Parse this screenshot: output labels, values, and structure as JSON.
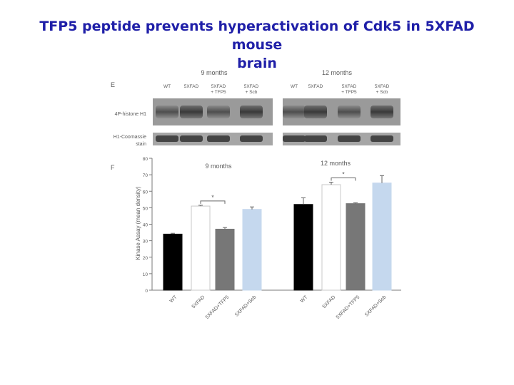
{
  "slide": {
    "title_line1": "TFP5 peptide prevents hyperactivation of Cdk5 in 5XFAD mouse",
    "title_line2": "brain"
  },
  "panel_e": {
    "letter": "E",
    "groups": [
      {
        "header": "9 months",
        "lanes": [
          "WT",
          "5XFAD",
          "5XFAD\n+ TFP5",
          "5XFAD\n+ Scb"
        ]
      },
      {
        "header": "12 months",
        "lanes": [
          "WT",
          "5XFAD",
          "5XFAD\n+ TFP5",
          "5XFAD\n+ Scb"
        ]
      }
    ],
    "row_labels": [
      "4P-histone H1",
      "H1-Coomassie\nstain"
    ]
  },
  "panel_f": {
    "letter": "F",
    "chart_data": {
      "type": "bar",
      "ylabel": "Kinase Assay (mean density)",
      "ylim": [
        0,
        80
      ],
      "yticks": [
        "0",
        "10",
        "20",
        "30",
        "40",
        "50",
        "60",
        "70",
        "80"
      ],
      "groups": [
        {
          "title": "9 months",
          "significance": "*",
          "categories": [
            "WT",
            "5XFAD",
            "5XFAD+TFP5",
            "5XFAD+Scb"
          ],
          "values": [
            34,
            51,
            37,
            49
          ],
          "errors": [
            0.5,
            0.5,
            1,
            1.5
          ],
          "colors": [
            "#000000",
            "#ffffff",
            "#777777",
            "#c5d8ee"
          ]
        },
        {
          "title": "12 months",
          "significance": "*",
          "categories": [
            "WT",
            "5XFAD",
            "5XFAD+TFP5",
            "5XFAD+Scb"
          ],
          "values": [
            52,
            64,
            52.5,
            65
          ],
          "errors": [
            4,
            1.5,
            0.5,
            4.5
          ],
          "colors": [
            "#000000",
            "#ffffff",
            "#777777",
            "#c5d8ee"
          ]
        }
      ]
    }
  }
}
